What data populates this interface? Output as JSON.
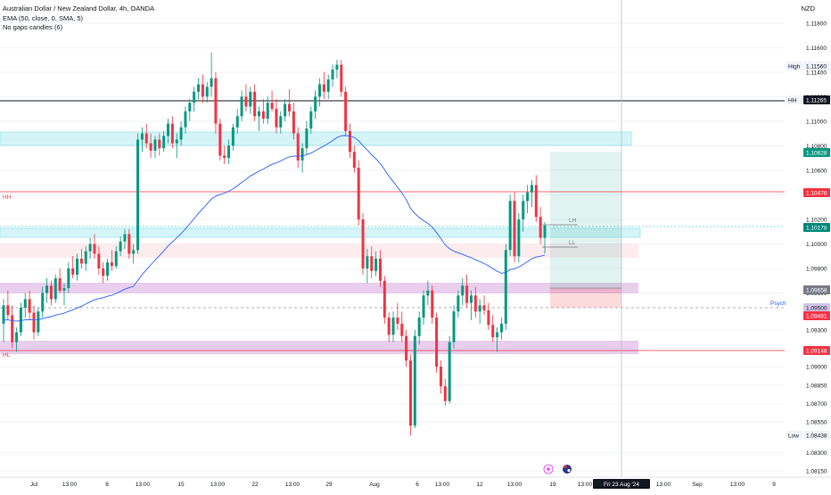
{
  "header": {
    "title": "Australian Dollar / New Zealand Dollar, 4h, OANDA",
    "indicator": "EMA (50, close, 0, SMA, 5)",
    "gaps": "No gaps candles (6)",
    "currency": "NZD"
  },
  "colors": {
    "up": "#089981",
    "down": "#f23645",
    "ema": "#2962ff",
    "grid": "#f0f3fa",
    "cyan_zone": "#b2ebf2",
    "purple_zone": "#e1bee7",
    "pink_zone": "#fce4e7"
  },
  "chart_data": {
    "type": "candlestick",
    "symbol": "AUDNZD",
    "timeframe": "4h",
    "y_range": [
      1.081,
      1.119
    ],
    "y_ticks": [
      "1.11800",
      "1.11600",
      "1.11400",
      "1.11200",
      "1.11000",
      "1.10800",
      "1.10600",
      "1.10400",
      "1.10200",
      "1.10000",
      "1.09800",
      "1.09600",
      "1.09300",
      "1.09150",
      "1.09000",
      "1.08850",
      "1.08700",
      "1.08550",
      "1.08300",
      "1.08150"
    ],
    "x_ticks": [
      "Jul",
      "13:00",
      "8",
      "13:00",
      "15",
      "13:00",
      "22",
      "13:00",
      "29",
      "Aug",
      "6",
      "13:00",
      "12",
      "13:00",
      "19",
      "13:00",
      "Fri 23 Aug '24",
      "13:00",
      "Sep",
      "13:00",
      "9"
    ],
    "price_labels": [
      {
        "label": "High",
        "value": "1.11560",
        "kind": "hl"
      },
      {
        "label": "HH",
        "value": "1.11265",
        "kind": "black"
      },
      {
        "label": "",
        "value": "1.10828",
        "kind": "green"
      },
      {
        "label": "",
        "value": "1.10476",
        "kind": "red"
      },
      {
        "label": "",
        "value": "1.10178",
        "kind": "teal"
      },
      {
        "label": "",
        "value": "1.09658",
        "kind": "grey"
      },
      {
        "label": "",
        "value": "1.09500",
        "kind": "psych"
      },
      {
        "label": "",
        "value": "1.09491",
        "kind": "red"
      },
      {
        "label": "",
        "value": "1.09148",
        "kind": "red"
      },
      {
        "label": "Low",
        "value": "1.08438",
        "kind": "hl"
      }
    ],
    "annotations": {
      "hh_right": "HH",
      "hh_left": "HH",
      "hl_left": "HL",
      "lh": "LH",
      "ll": "LL",
      "psych": "Psych Level"
    },
    "candles": [
      {
        "o": 1.0935,
        "h": 1.0955,
        "l": 1.092,
        "c": 1.095
      },
      {
        "o": 1.095,
        "h": 1.0962,
        "l": 1.0938,
        "c": 1.0942
      },
      {
        "o": 1.0942,
        "h": 1.095,
        "l": 1.0915,
        "c": 1.092
      },
      {
        "o": 1.092,
        "h": 1.0932,
        "l": 1.0912,
        "c": 1.0928
      },
      {
        "o": 1.0928,
        "h": 1.0952,
        "l": 1.0925,
        "c": 1.0948
      },
      {
        "o": 1.0948,
        "h": 1.096,
        "l": 1.094,
        "c": 1.0955
      },
      {
        "o": 1.0955,
        "h": 1.0962,
        "l": 1.0938,
        "c": 1.0944
      },
      {
        "o": 1.0944,
        "h": 1.095,
        "l": 1.0922,
        "c": 1.0928
      },
      {
        "o": 1.0928,
        "h": 1.0948,
        "l": 1.0925,
        "c": 1.0945
      },
      {
        "o": 1.0945,
        "h": 1.0965,
        "l": 1.094,
        "c": 1.096
      },
      {
        "o": 1.096,
        "h": 1.0972,
        "l": 1.0952,
        "c": 1.0966
      },
      {
        "o": 1.0966,
        "h": 1.097,
        "l": 1.095,
        "c": 1.0955
      },
      {
        "o": 1.0955,
        "h": 1.0975,
        "l": 1.0952,
        "c": 1.0972
      },
      {
        "o": 1.0972,
        "h": 1.098,
        "l": 1.096,
        "c": 1.0962
      },
      {
        "o": 1.0962,
        "h": 1.0968,
        "l": 1.095,
        "c": 1.0964
      },
      {
        "o": 1.0964,
        "h": 1.0985,
        "l": 1.096,
        "c": 1.098
      },
      {
        "o": 1.098,
        "h": 1.099,
        "l": 1.0972,
        "c": 1.0975
      },
      {
        "o": 1.0975,
        "h": 1.0992,
        "l": 1.097,
        "c": 1.0988
      },
      {
        "o": 1.0988,
        "h": 1.0996,
        "l": 1.098,
        "c": 1.0984
      },
      {
        "o": 1.0984,
        "h": 1.0998,
        "l": 1.0978,
        "c": 1.0994
      },
      {
        "o": 1.0994,
        "h": 1.1005,
        "l": 1.0988,
        "c": 1.1
      },
      {
        "o": 1.1,
        "h": 1.1008,
        "l": 1.0988,
        "c": 1.0992
      },
      {
        "o": 1.0992,
        "h": 1.0998,
        "l": 1.0975,
        "c": 1.098
      },
      {
        "o": 1.098,
        "h": 1.0985,
        "l": 1.0968,
        "c": 1.0974
      },
      {
        "o": 1.0974,
        "h": 1.0988,
        "l": 1.097,
        "c": 1.0985
      },
      {
        "o": 1.0985,
        "h": 1.0995,
        "l": 1.0978,
        "c": 1.0982
      },
      {
        "o": 1.0982,
        "h": 1.0998,
        "l": 1.098,
        "c": 1.0994
      },
      {
        "o": 1.0994,
        "h": 1.1006,
        "l": 1.099,
        "c": 1.1002
      },
      {
        "o": 1.1002,
        "h": 1.1012,
        "l": 1.0996,
        "c": 1.1008
      },
      {
        "o": 1.1008,
        "h": 1.1012,
        "l": 1.0988,
        "c": 1.0992
      },
      {
        "o": 1.0992,
        "h": 1.1,
        "l": 1.0984,
        "c": 1.0995
      },
      {
        "o": 1.0995,
        "h": 1.109,
        "l": 1.0992,
        "c": 1.1085
      },
      {
        "o": 1.1085,
        "h": 1.1095,
        "l": 1.1075,
        "c": 1.109
      },
      {
        "o": 1.109,
        "h": 1.1098,
        "l": 1.1078,
        "c": 1.1082
      },
      {
        "o": 1.1082,
        "h": 1.109,
        "l": 1.107,
        "c": 1.1076
      },
      {
        "o": 1.1076,
        "h": 1.1088,
        "l": 1.107,
        "c": 1.1085
      },
      {
        "o": 1.1085,
        "h": 1.109,
        "l": 1.1072,
        "c": 1.1078
      },
      {
        "o": 1.1078,
        "h": 1.1092,
        "l": 1.1075,
        "c": 1.1088
      },
      {
        "o": 1.1088,
        "h": 1.1102,
        "l": 1.1082,
        "c": 1.1098
      },
      {
        "o": 1.1098,
        "h": 1.1104,
        "l": 1.1078,
        "c": 1.1082
      },
      {
        "o": 1.1082,
        "h": 1.109,
        "l": 1.107,
        "c": 1.1085
      },
      {
        "o": 1.1085,
        "h": 1.11,
        "l": 1.108,
        "c": 1.1095
      },
      {
        "o": 1.1095,
        "h": 1.1112,
        "l": 1.109,
        "c": 1.1108
      },
      {
        "o": 1.1108,
        "h": 1.1118,
        "l": 1.11,
        "c": 1.1115
      },
      {
        "o": 1.1115,
        "h": 1.1128,
        "l": 1.1108,
        "c": 1.1124
      },
      {
        "o": 1.1124,
        "h": 1.1135,
        "l": 1.1118,
        "c": 1.113
      },
      {
        "o": 1.113,
        "h": 1.1138,
        "l": 1.1115,
        "c": 1.112
      },
      {
        "o": 1.112,
        "h": 1.1132,
        "l": 1.1115,
        "c": 1.1128
      },
      {
        "o": 1.1128,
        "h": 1.1156,
        "l": 1.112,
        "c": 1.1135
      },
      {
        "o": 1.1135,
        "h": 1.114,
        "l": 1.109,
        "c": 1.1098
      },
      {
        "o": 1.1098,
        "h": 1.1102,
        "l": 1.1068,
        "c": 1.1072
      },
      {
        "o": 1.1072,
        "h": 1.108,
        "l": 1.1065,
        "c": 1.107
      },
      {
        "o": 1.107,
        "h": 1.1085,
        "l": 1.1065,
        "c": 1.108
      },
      {
        "o": 1.108,
        "h": 1.1098,
        "l": 1.1076,
        "c": 1.1095
      },
      {
        "o": 1.1095,
        "h": 1.111,
        "l": 1.109,
        "c": 1.1104
      },
      {
        "o": 1.1104,
        "h": 1.1125,
        "l": 1.11,
        "c": 1.112
      },
      {
        "o": 1.112,
        "h": 1.113,
        "l": 1.1108,
        "c": 1.1112
      },
      {
        "o": 1.1112,
        "h": 1.1128,
        "l": 1.1106,
        "c": 1.1124
      },
      {
        "o": 1.1124,
        "h": 1.113,
        "l": 1.11,
        "c": 1.1104
      },
      {
        "o": 1.1104,
        "h": 1.1112,
        "l": 1.1092,
        "c": 1.1108
      },
      {
        "o": 1.1108,
        "h": 1.1118,
        "l": 1.1098,
        "c": 1.1102
      },
      {
        "o": 1.1102,
        "h": 1.112,
        "l": 1.1098,
        "c": 1.1115
      },
      {
        "o": 1.1115,
        "h": 1.1125,
        "l": 1.1108,
        "c": 1.111
      },
      {
        "o": 1.111,
        "h": 1.1118,
        "l": 1.109,
        "c": 1.1095
      },
      {
        "o": 1.1095,
        "h": 1.1108,
        "l": 1.109,
        "c": 1.1104
      },
      {
        "o": 1.1104,
        "h": 1.1118,
        "l": 1.11,
        "c": 1.1114
      },
      {
        "o": 1.1114,
        "h": 1.1126,
        "l": 1.1104,
        "c": 1.1108
      },
      {
        "o": 1.1108,
        "h": 1.1115,
        "l": 1.1085,
        "c": 1.109
      },
      {
        "o": 1.109,
        "h": 1.1095,
        "l": 1.1062,
        "c": 1.1068
      },
      {
        "o": 1.1068,
        "h": 1.1082,
        "l": 1.1058,
        "c": 1.1078
      },
      {
        "o": 1.1078,
        "h": 1.11,
        "l": 1.1072,
        "c": 1.1094
      },
      {
        "o": 1.1094,
        "h": 1.1112,
        "l": 1.109,
        "c": 1.1108
      },
      {
        "o": 1.1108,
        "h": 1.1125,
        "l": 1.1102,
        "c": 1.112
      },
      {
        "o": 1.112,
        "h": 1.1135,
        "l": 1.1112,
        "c": 1.113
      },
      {
        "o": 1.113,
        "h": 1.114,
        "l": 1.1118,
        "c": 1.1124
      },
      {
        "o": 1.1124,
        "h": 1.1138,
        "l": 1.1118,
        "c": 1.1134
      },
      {
        "o": 1.1134,
        "h": 1.1146,
        "l": 1.1128,
        "c": 1.1142
      },
      {
        "o": 1.1142,
        "h": 1.115,
        "l": 1.1135,
        "c": 1.1146
      },
      {
        "o": 1.1146,
        "h": 1.115,
        "l": 1.112,
        "c": 1.1124
      },
      {
        "o": 1.1124,
        "h": 1.1128,
        "l": 1.1088,
        "c": 1.1092
      },
      {
        "o": 1.1092,
        "h": 1.1098,
        "l": 1.107,
        "c": 1.1075
      },
      {
        "o": 1.1075,
        "h": 1.108,
        "l": 1.1058,
        "c": 1.1062
      },
      {
        "o": 1.1062,
        "h": 1.1068,
        "l": 1.1015,
        "c": 1.102
      },
      {
        "o": 1.102,
        "h": 1.1025,
        "l": 1.0975,
        "c": 1.098
      },
      {
        "o": 1.098,
        "h": 1.0996,
        "l": 1.0968,
        "c": 1.099
      },
      {
        "o": 1.099,
        "h": 1.0998,
        "l": 1.0972,
        "c": 1.0978
      },
      {
        "o": 1.0978,
        "h": 1.0994,
        "l": 1.0974,
        "c": 1.0988
      },
      {
        "o": 1.0988,
        "h": 1.0995,
        "l": 1.0965,
        "c": 1.097
      },
      {
        "o": 1.097,
        "h": 1.0974,
        "l": 1.0935,
        "c": 1.094
      },
      {
        "o": 1.094,
        "h": 1.0944,
        "l": 1.092,
        "c": 1.0926
      },
      {
        "o": 1.0926,
        "h": 1.0945,
        "l": 1.092,
        "c": 1.094
      },
      {
        "o": 1.094,
        "h": 1.0952,
        "l": 1.093,
        "c": 1.0935
      },
      {
        "o": 1.0935,
        "h": 1.0945,
        "l": 1.092,
        "c": 1.0925
      },
      {
        "o": 1.0925,
        "h": 1.093,
        "l": 1.09,
        "c": 1.0905
      },
      {
        "o": 1.0905,
        "h": 1.091,
        "l": 1.0844,
        "c": 1.0852
      },
      {
        "o": 1.0852,
        "h": 1.093,
        "l": 1.085,
        "c": 1.0925
      },
      {
        "o": 1.0925,
        "h": 1.0945,
        "l": 1.0918,
        "c": 1.094
      },
      {
        "o": 1.094,
        "h": 1.0962,
        "l": 1.0934,
        "c": 1.0958
      },
      {
        "o": 1.0958,
        "h": 1.097,
        "l": 1.095,
        "c": 1.0962
      },
      {
        "o": 1.0962,
        "h": 1.0966,
        "l": 1.0935,
        "c": 1.094
      },
      {
        "o": 1.094,
        "h": 1.0944,
        "l": 1.0895,
        "c": 1.09
      },
      {
        "o": 1.09,
        "h": 1.0905,
        "l": 1.0878,
        "c": 1.0884
      },
      {
        "o": 1.0884,
        "h": 1.089,
        "l": 1.0868,
        "c": 1.0872
      },
      {
        "o": 1.0872,
        "h": 1.0925,
        "l": 1.087,
        "c": 1.092
      },
      {
        "o": 1.092,
        "h": 1.095,
        "l": 1.0915,
        "c": 1.0945
      },
      {
        "o": 1.0945,
        "h": 1.0962,
        "l": 1.094,
        "c": 1.0958
      },
      {
        "o": 1.0958,
        "h": 1.0972,
        "l": 1.095,
        "c": 1.0966
      },
      {
        "o": 1.0966,
        "h": 1.0975,
        "l": 1.0948,
        "c": 1.0952
      },
      {
        "o": 1.0952,
        "h": 1.0962,
        "l": 1.0938,
        "c": 1.0958
      },
      {
        "o": 1.0958,
        "h": 1.0965,
        "l": 1.094,
        "c": 1.0945
      },
      {
        "o": 1.0945,
        "h": 1.0955,
        "l": 1.0935,
        "c": 1.095
      },
      {
        "o": 1.095,
        "h": 1.0958,
        "l": 1.0942,
        "c": 1.0946
      },
      {
        "o": 1.0946,
        "h": 1.0952,
        "l": 1.093,
        "c": 1.0934
      },
      {
        "o": 1.0934,
        "h": 1.0942,
        "l": 1.092,
        "c": 1.0924
      },
      {
        "o": 1.0924,
        "h": 1.0932,
        "l": 1.0912,
        "c": 1.0928
      },
      {
        "o": 1.0928,
        "h": 1.094,
        "l": 1.0922,
        "c": 1.0935
      },
      {
        "o": 1.0935,
        "h": 1.1,
        "l": 1.093,
        "c": 1.0995
      },
      {
        "o": 1.0995,
        "h": 1.104,
        "l": 1.099,
        "c": 1.1035
      },
      {
        "o": 1.1035,
        "h": 1.1042,
        "l": 1.0985,
        "c": 1.099
      },
      {
        "o": 1.099,
        "h": 1.1025,
        "l": 1.0985,
        "c": 1.102
      },
      {
        "o": 1.102,
        "h": 1.104,
        "l": 1.101,
        "c": 1.1035
      },
      {
        "o": 1.1035,
        "h": 1.1048,
        "l": 1.1025,
        "c": 1.1042
      },
      {
        "o": 1.1042,
        "h": 1.1052,
        "l": 1.103,
        "c": 1.1048
      },
      {
        "o": 1.1048,
        "h": 1.1056,
        "l": 1.1018,
        "c": 1.1022
      },
      {
        "o": 1.1022,
        "h": 1.103,
        "l": 1.1,
        "c": 1.1005
      },
      {
        "o": 1.1005,
        "h": 1.1018,
        "l": 1.0992,
        "c": 1.1015
      }
    ],
    "ema_label": "EMA 50"
  },
  "bottom_icons": {
    "flash": "lightning-icon",
    "flag": "australia-flag-icon"
  }
}
